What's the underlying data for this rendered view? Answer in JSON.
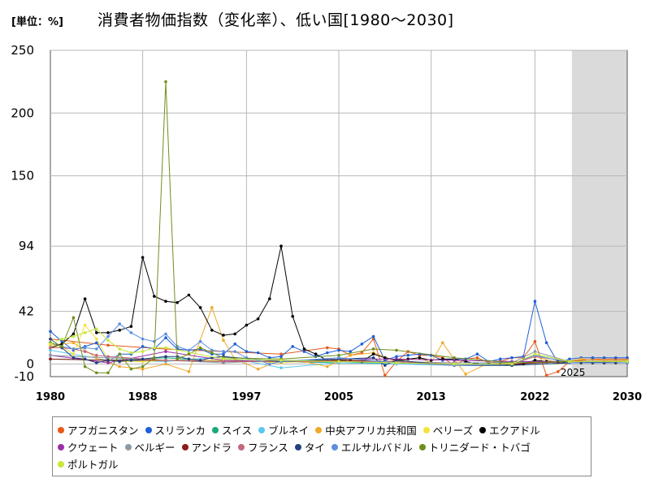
{
  "unit_label": "[単位：%]",
  "chart_data": {
    "type": "line",
    "title": "消費者物価指数（変化率）、低い国[1980〜2030]",
    "xlabel": "",
    "ylabel": "",
    "xlim": [
      1980,
      2030
    ],
    "ylim": [
      -10,
      250
    ],
    "x_ticks": [
      1980,
      1988,
      1997,
      2005,
      2013,
      2022,
      2030
    ],
    "y_ticks": [
      -10,
      0,
      42,
      94,
      150,
      200,
      250
    ],
    "forecast_start": 2025,
    "forecast_label": "2025",
    "grid": true,
    "legend_position": "bottom",
    "series": [
      {
        "name": "アフガニスタン",
        "color": "#e8591a",
        "x": [
          1980,
          1985,
          1990,
          1995,
          2000,
          2004,
          2005,
          2006,
          2007,
          2008,
          2009,
          2010,
          2011,
          2012,
          2013,
          2014,
          2015,
          2016,
          2017,
          2018,
          2019,
          2020,
          2021,
          2022,
          2023,
          2024,
          2025,
          2026,
          2027,
          2028,
          2029,
          2030
        ],
        "y": [
          20,
          15,
          12,
          10,
          8,
          13,
          12,
          7,
          9,
          20,
          -9,
          2,
          10,
          7,
          7,
          5,
          -1,
          4,
          5,
          1,
          2,
          5,
          5,
          18,
          -9,
          -6,
          2,
          3,
          4,
          4,
          4,
          4
        ]
      },
      {
        "name": "スリランカ",
        "color": "#1f5fd6",
        "x": [
          1980,
          1981,
          1982,
          1983,
          1984,
          1985,
          1986,
          1987,
          1988,
          1989,
          1990,
          1991,
          1992,
          1993,
          1994,
          1995,
          1996,
          1997,
          1998,
          1999,
          2000,
          2001,
          2002,
          2003,
          2004,
          2005,
          2006,
          2007,
          2008,
          2009,
          2010,
          2011,
          2012,
          2013,
          2014,
          2015,
          2016,
          2017,
          2018,
          2019,
          2020,
          2021,
          2022,
          2023,
          2024,
          2025,
          2026,
          2027,
          2028,
          2029,
          2030
        ],
        "y": [
          26,
          18,
          11,
          14,
          17,
          2,
          8,
          8,
          14,
          12,
          21,
          12,
          11,
          12,
          8,
          8,
          16,
          10,
          9,
          5,
          6,
          14,
          10,
          6,
          9,
          11,
          10,
          16,
          22,
          3,
          6,
          7,
          8,
          7,
          3,
          4,
          4,
          8,
          2,
          4,
          5,
          6,
          50,
          17,
          1,
          4,
          5,
          5,
          5,
          5,
          5
        ]
      },
      {
        "name": "スイス",
        "color": "#19a97b",
        "x": [
          1980,
          1985,
          1990,
          1995,
          2000,
          2005,
          2010,
          2015,
          2020,
          2025,
          2030
        ],
        "y": [
          4,
          3,
          5,
          2,
          2,
          1,
          1,
          -1,
          -1,
          1,
          1
        ]
      },
      {
        "name": "ブルネイ",
        "color": "#5bc8ef",
        "x": [
          1980,
          1985,
          1990,
          1995,
          2000,
          2005,
          2010,
          2015,
          2020,
          2025,
          2030
        ],
        "y": [
          11,
          3,
          2,
          6,
          -3,
          1,
          0,
          -1,
          2,
          1,
          1
        ]
      },
      {
        "name": "中央アフリカ共和国",
        "color": "#f0a928",
        "x": [
          1980,
          1982,
          1984,
          1986,
          1988,
          1990,
          1992,
          1994,
          1995,
          1996,
          1998,
          2000,
          2002,
          2004,
          2006,
          2008,
          2010,
          2012,
          2013,
          2014,
          2015,
          2016,
          2018,
          2020,
          2022,
          2024,
          2026,
          2028,
          2030
        ],
        "y": [
          15,
          17,
          5,
          -2,
          -4,
          0,
          -6,
          45,
          19,
          4,
          -4,
          3,
          2,
          -2,
          7,
          9,
          2,
          5,
          1,
          17,
          4,
          -8,
          1,
          0,
          6,
          1,
          4,
          3,
          3
        ]
      },
      {
        "name": "ベリーズ",
        "color": "#f4e23a",
        "x": [
          1980,
          1981,
          1982,
          1983,
          1984,
          1985,
          1986,
          1988,
          1990,
          1995,
          2000,
          2005,
          2010,
          2015,
          2020,
          2025,
          2030
        ],
        "y": [
          13,
          14,
          8,
          31,
          20,
          4,
          2,
          2,
          3,
          3,
          1,
          4,
          1,
          -1,
          0,
          2,
          2
        ]
      },
      {
        "name": "エクアドル",
        "color": "#000000",
        "x": [
          1980,
          1981,
          1982,
          1983,
          1984,
          1985,
          1986,
          1987,
          1988,
          1989,
          1990,
          1991,
          1992,
          1993,
          1994,
          1995,
          1996,
          1997,
          1998,
          1999,
          2000,
          2001,
          2002,
          2003,
          2004,
          2005,
          2006,
          2007,
          2008,
          2009,
          2010,
          2011,
          2012,
          2013,
          2014,
          2015,
          2016,
          2017,
          2018,
          2019,
          2020,
          2021,
          2022,
          2023,
          2024,
          2025,
          2026,
          2027,
          2028,
          2029,
          2030
        ],
        "y": [
          13,
          16,
          24,
          52,
          25,
          25,
          27,
          30,
          85,
          54,
          50,
          49,
          55,
          45,
          27,
          23,
          24,
          31,
          36,
          52,
          94,
          38,
          12,
          8,
          3,
          2,
          3,
          2,
          8,
          5,
          3,
          4,
          5,
          3,
          4,
          4,
          2,
          0,
          0,
          0,
          -1,
          0,
          3,
          2,
          2,
          1,
          1,
          1,
          1,
          1,
          1
        ]
      },
      {
        "name": "クウェート",
        "color": "#9b2fa8",
        "x": [
          1980,
          1985,
          1990,
          1995,
          2000,
          2005,
          2010,
          2015,
          2020,
          2025,
          2030
        ],
        "y": [
          7,
          1,
          10,
          3,
          2,
          4,
          4,
          3,
          2,
          2,
          2
        ]
      },
      {
        "name": "ベルギー",
        "color": "#8c9aa4",
        "x": [
          1980,
          1985,
          1990,
          1995,
          2000,
          2005,
          2010,
          2015,
          2020,
          2022,
          2025,
          2030
        ],
        "y": [
          7,
          5,
          3,
          1,
          3,
          3,
          2,
          1,
          1,
          10,
          2,
          2
        ]
      },
      {
        "name": "アンドラ",
        "color": "#8b1a1a",
        "x": [
          1980,
          1985,
          1990,
          1995,
          2000,
          2005,
          2010,
          2015,
          2020,
          2025,
          2030
        ],
        "y": [
          4,
          3,
          3,
          2,
          2,
          3,
          2,
          -1,
          0,
          2,
          2
        ]
      },
      {
        "name": "フランス",
        "color": "#c06a7c",
        "x": [
          1980,
          1981,
          1982,
          1983,
          1984,
          1985,
          1990,
          1995,
          2000,
          2005,
          2010,
          2015,
          2020,
          2022,
          2025,
          2030
        ],
        "y": [
          13,
          13,
          12,
          10,
          7,
          6,
          3,
          2,
          2,
          2,
          2,
          0,
          0,
          6,
          2,
          2
        ]
      },
      {
        "name": "タイ",
        "color": "#24407f",
        "x": [
          1980,
          1981,
          1982,
          1983,
          1984,
          1985,
          1986,
          1987,
          1988,
          1989,
          1990,
          1991,
          1992,
          1993,
          1994,
          1995,
          2000,
          2005,
          2008,
          2009,
          2010,
          2015,
          2020,
          2025,
          2030
        ],
        "y": [
          20,
          13,
          5,
          4,
          1,
          3,
          2,
          3,
          4,
          5,
          6,
          6,
          4,
          3,
          5,
          6,
          2,
          4,
          5,
          -1,
          3,
          -1,
          -1,
          1,
          2
        ]
      },
      {
        "name": "エルサルバドル",
        "color": "#5d8fe0",
        "x": [
          1980,
          1981,
          1982,
          1983,
          1984,
          1985,
          1986,
          1987,
          1988,
          1989,
          1990,
          1991,
          1992,
          1993,
          1994,
          1995,
          1996,
          1997,
          1998,
          1999,
          2000,
          2005,
          2010,
          2015,
          2020,
          2022,
          2025,
          2030
        ],
        "y": [
          17,
          14,
          12,
          13,
          12,
          22,
          32,
          25,
          20,
          18,
          24,
          14,
          11,
          18,
          11,
          10,
          10,
          5,
          3,
          0,
          2,
          5,
          1,
          -1,
          0,
          7,
          1,
          1
        ]
      },
      {
        "name": "トリニダード・トバゴ",
        "color": "#6e8f1c",
        "x": [
          1980,
          1981,
          1982,
          1983,
          1984,
          1985,
          1986,
          1987,
          1988,
          1989,
          1990,
          1991,
          1992,
          1993,
          1994,
          1995,
          2000,
          2005,
          2008,
          2010,
          2015,
          2020,
          2025,
          2030
        ],
        "y": [
          17,
          14,
          37,
          -2,
          -7,
          -7,
          8,
          -4,
          -2,
          5,
          225,
          4,
          8,
          13,
          9,
          5,
          4,
          7,
          12,
          11,
          5,
          1,
          2,
          2
        ]
      },
      {
        "name": "ポルトガル",
        "color": "#c6e83a",
        "x": [
          1980,
          1981,
          1982,
          1983,
          1984,
          1985,
          1986,
          1987,
          1988,
          1989,
          1990,
          1995,
          2000,
          2005,
          2010,
          2015,
          2020,
          2022,
          2025,
          2030
        ],
        "y": [
          16,
          20,
          22,
          25,
          28,
          19,
          12,
          9,
          10,
          13,
          13,
          4,
          3,
          2,
          1,
          0,
          0,
          8,
          2,
          2
        ]
      }
    ]
  }
}
